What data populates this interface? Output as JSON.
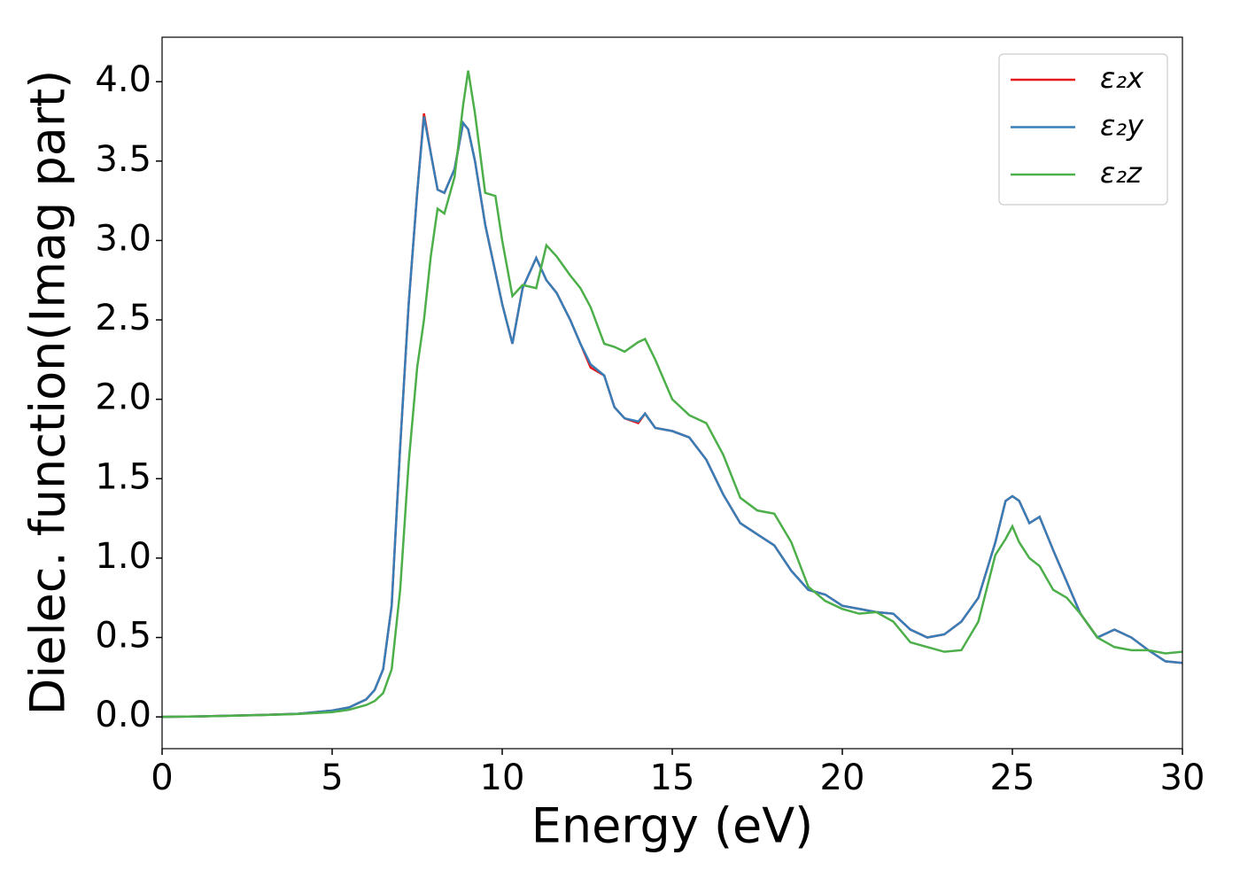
{
  "chart_data": {
    "type": "line",
    "xlabel": "Energy (eV)",
    "ylabel": "Dielec. function(Imag part)",
    "x": [
      0,
      1,
      2,
      3,
      4,
      5,
      5.5,
      6,
      6.25,
      6.5,
      6.75,
      7,
      7.25,
      7.5,
      7.7,
      7.9,
      8.1,
      8.3,
      8.6,
      8.85,
      9.0,
      9.2,
      9.5,
      9.8,
      10,
      10.3,
      10.6,
      11,
      11.3,
      11.6,
      12,
      12.3,
      12.6,
      13,
      13.3,
      13.6,
      14,
      14.2,
      14.5,
      15,
      15.5,
      16,
      16.5,
      17,
      17.5,
      18,
      18.5,
      19,
      19.5,
      20,
      20.5,
      21,
      21.5,
      22,
      22.5,
      23,
      23.5,
      24,
      24.5,
      24.8,
      25,
      25.2,
      25.5,
      25.8,
      26.2,
      26.6,
      27,
      27.5,
      28,
      28.5,
      29,
      29.5,
      30
    ],
    "series": [
      {
        "name": "ε₂x",
        "color": "#e41a1c",
        "values": [
          0,
          0.003,
          0.008,
          0.013,
          0.02,
          0.04,
          0.06,
          0.11,
          0.17,
          0.3,
          0.7,
          1.7,
          2.6,
          3.3,
          3.8,
          3.55,
          3.32,
          3.3,
          3.45,
          3.74,
          3.7,
          3.5,
          3.1,
          2.8,
          2.6,
          2.35,
          2.7,
          2.89,
          2.75,
          2.67,
          2.5,
          2.35,
          2.2,
          2.15,
          1.95,
          1.88,
          1.85,
          1.91,
          1.82,
          1.8,
          1.76,
          1.62,
          1.4,
          1.22,
          1.15,
          1.08,
          0.92,
          0.8,
          0.77,
          0.7,
          0.68,
          0.66,
          0.65,
          0.55,
          0.5,
          0.52,
          0.6,
          0.75,
          1.1,
          1.36,
          1.39,
          1.36,
          1.22,
          1.26,
          1.05,
          0.85,
          0.65,
          0.5,
          0.55,
          0.5,
          0.42,
          0.35,
          0.34
        ]
      },
      {
        "name": "ε₂y",
        "color": "#377eb8",
        "values": [
          0,
          0.003,
          0.008,
          0.013,
          0.02,
          0.04,
          0.06,
          0.11,
          0.17,
          0.3,
          0.7,
          1.7,
          2.6,
          3.3,
          3.78,
          3.55,
          3.32,
          3.3,
          3.45,
          3.74,
          3.7,
          3.5,
          3.1,
          2.8,
          2.6,
          2.35,
          2.7,
          2.89,
          2.75,
          2.67,
          2.5,
          2.35,
          2.22,
          2.15,
          1.95,
          1.88,
          1.86,
          1.91,
          1.82,
          1.8,
          1.76,
          1.62,
          1.4,
          1.22,
          1.15,
          1.08,
          0.92,
          0.8,
          0.77,
          0.7,
          0.68,
          0.66,
          0.65,
          0.55,
          0.5,
          0.52,
          0.6,
          0.75,
          1.1,
          1.36,
          1.39,
          1.36,
          1.22,
          1.26,
          1.05,
          0.85,
          0.65,
          0.5,
          0.55,
          0.5,
          0.42,
          0.35,
          0.34
        ]
      },
      {
        "name": "ε₂z",
        "color": "#4daf4a",
        "values": [
          0,
          0.003,
          0.007,
          0.012,
          0.018,
          0.03,
          0.045,
          0.075,
          0.1,
          0.15,
          0.3,
          0.8,
          1.6,
          2.2,
          2.5,
          2.9,
          3.2,
          3.17,
          3.4,
          3.85,
          4.07,
          3.8,
          3.3,
          3.28,
          3.0,
          2.65,
          2.72,
          2.7,
          2.97,
          2.9,
          2.78,
          2.7,
          2.58,
          2.35,
          2.33,
          2.3,
          2.36,
          2.38,
          2.25,
          2.0,
          1.9,
          1.85,
          1.65,
          1.38,
          1.3,
          1.28,
          1.1,
          0.82,
          0.73,
          0.68,
          0.65,
          0.66,
          0.6,
          0.47,
          0.44,
          0.41,
          0.42,
          0.6,
          1.02,
          1.12,
          1.2,
          1.1,
          1.0,
          0.95,
          0.8,
          0.75,
          0.65,
          0.5,
          0.44,
          0.42,
          0.42,
          0.4,
          0.41
        ]
      }
    ],
    "xlim": [
      0,
      30
    ],
    "xticks": [
      0,
      5,
      10,
      15,
      20,
      25,
      30
    ],
    "ylim": [
      -0.2,
      4.28
    ],
    "yticks": [
      {
        "value": 0,
        "label": "0.0"
      },
      {
        "value": 0.5,
        "label": "0.5"
      },
      {
        "value": 1,
        "label": "1.0"
      },
      {
        "value": 1.5,
        "label": "1.5"
      },
      {
        "value": 2,
        "label": "2.0"
      },
      {
        "value": 2.5,
        "label": "2.5"
      },
      {
        "value": 3,
        "label": "3.0"
      },
      {
        "value": 3.5,
        "label": "3.5"
      },
      {
        "value": 4,
        "label": "4.0"
      }
    ],
    "legend": "upper right"
  }
}
